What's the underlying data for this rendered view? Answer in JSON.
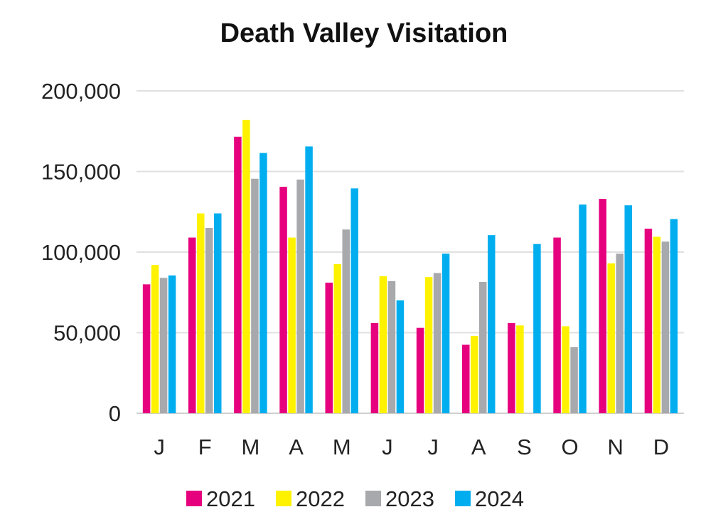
{
  "chart_data": {
    "type": "bar",
    "title": "Death Valley Visitation",
    "xlabel": "",
    "ylabel": "",
    "categories": [
      "J",
      "F",
      "M",
      "A",
      "M",
      "J",
      "J",
      "A",
      "S",
      "O",
      "N",
      "D"
    ],
    "ylim": [
      0,
      200000
    ],
    "yticks": [
      0,
      50000,
      100000,
      150000,
      200000
    ],
    "ytick_labels": [
      "0",
      "50,000",
      "100,000",
      "150,000",
      "200,000"
    ],
    "grid": true,
    "legend_position": "bottom",
    "series": [
      {
        "name": "2021",
        "color": "#E6007E",
        "values": [
          80000,
          109000,
          171500,
          140500,
          81000,
          56000,
          53000,
          42500,
          56000,
          109000,
          133000,
          114500
        ]
      },
      {
        "name": "2022",
        "color": "#FFF200",
        "values": [
          92000,
          124000,
          182000,
          109000,
          92500,
          85000,
          84500,
          48000,
          54500,
          54000,
          93000,
          109500
        ]
      },
      {
        "name": "2023",
        "color": "#A7A9AC",
        "values": [
          84000,
          115000,
          145500,
          145000,
          114000,
          82000,
          87000,
          81500,
          null,
          41000,
          99000,
          106500
        ]
      },
      {
        "name": "2024",
        "color": "#00AEEF",
        "values": [
          85500,
          124000,
          161500,
          165500,
          139500,
          70000,
          99000,
          110500,
          105000,
          129500,
          129000,
          120500
        ]
      }
    ]
  }
}
